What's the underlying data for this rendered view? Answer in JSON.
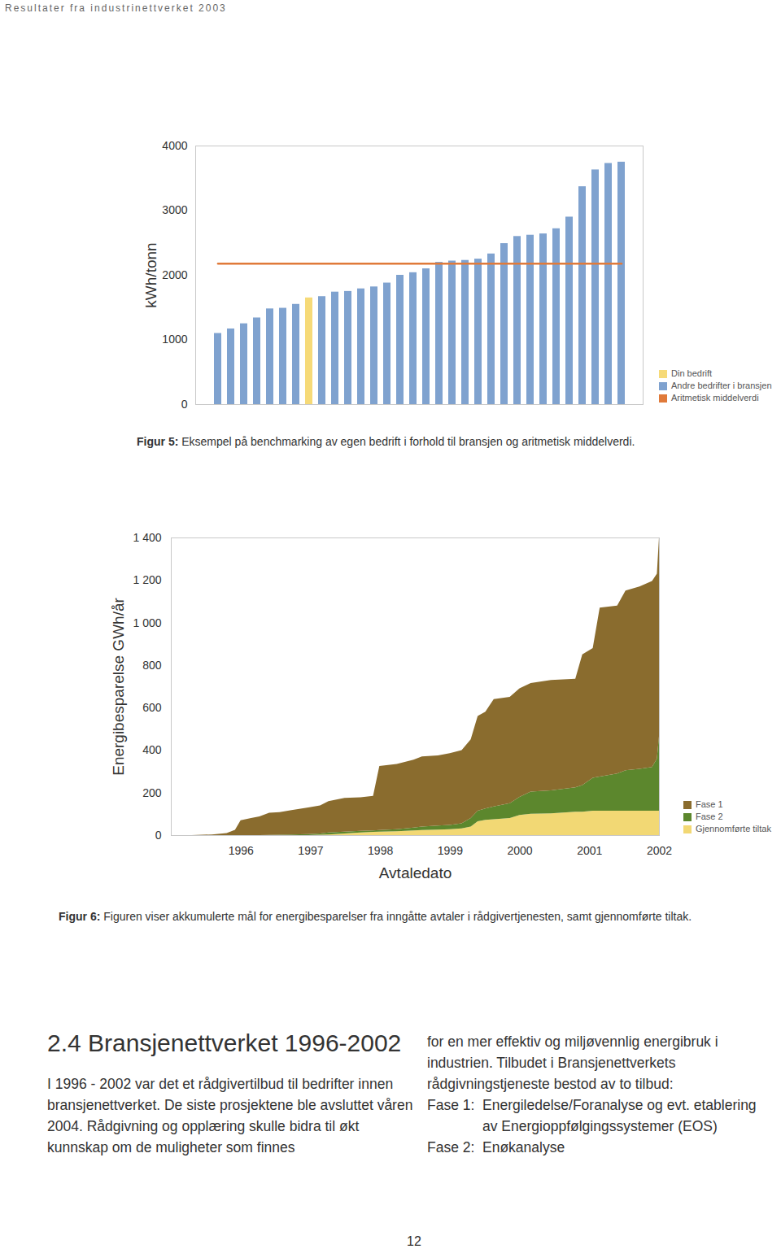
{
  "header": "Resultater fra industrinettverket 2003",
  "chart_data": [
    {
      "type": "bar",
      "ylabel": "kWh/tonn",
      "caption_label": "Figur 5:",
      "caption": "Eksempel på benchmarking av egen bedrift i forhold til bransjen og aritmetisk middelverdi.",
      "categories": [
        null,
        null,
        null,
        null,
        null,
        null,
        null,
        null,
        null,
        null,
        null,
        null,
        null,
        null,
        null,
        null,
        null,
        null,
        null,
        null,
        null,
        null,
        null,
        null,
        null,
        null,
        null,
        null,
        null,
        null,
        null,
        null
      ],
      "series": [
        {
          "name": "Din bedrift",
          "color": "#f6da78",
          "values": [
            null,
            null,
            null,
            null,
            null,
            null,
            null,
            1650,
            null,
            null,
            null,
            null,
            null,
            null,
            null,
            null,
            null,
            null,
            null,
            null,
            null,
            null,
            null,
            null,
            null,
            null,
            null,
            null,
            null,
            null,
            null,
            null
          ]
        },
        {
          "name": "Andre bedrifter i bransjen",
          "color": "#7fa2cf",
          "values": [
            1100,
            1170,
            1250,
            1340,
            1480,
            1490,
            1550,
            null,
            1670,
            1740,
            1750,
            1790,
            1820,
            1880,
            2000,
            2040,
            2100,
            2200,
            2220,
            2230,
            2250,
            2330,
            2490,
            2600,
            2620,
            2640,
            2720,
            2900,
            3370,
            3630,
            3730,
            3750
          ]
        },
        {
          "name": "Aritmetisk middelverdi",
          "color": "#e07a3a",
          "type": "line",
          "values": [
            2180,
            2180,
            2180,
            2180,
            2180,
            2180,
            2180,
            2180,
            2180,
            2180,
            2180,
            2180,
            2180,
            2180,
            2180,
            2180,
            2180,
            2180,
            2180,
            2180,
            2180,
            2180,
            2180,
            2180,
            2180,
            2180,
            2180,
            2180,
            2180,
            2180,
            2180,
            2180
          ]
        }
      ],
      "ylim": [
        0,
        4000
      ],
      "yticks": [
        0,
        1000,
        2000,
        3000,
        4000
      ],
      "tick_labels": "y",
      "legend": "lower right"
    },
    {
      "type": "area",
      "stacked": true,
      "xlabel": "Avtaledato",
      "ylabel": "Energibesparelse GWh/år",
      "caption_label": "Figur 6:",
      "caption": "Figuren viser akkumulerte mål for energibesparelser fra inngåtte avtaler i rådgivertjenesten, samt gjennomførte tiltak.",
      "x": [
        1995.3,
        1995.59,
        1995.8,
        1995.92,
        1996,
        1996.15,
        1996.27,
        1996.41,
        1996.56,
        1996.73,
        1996.97,
        1997.14,
        1997.26,
        1997.49,
        1997.72,
        1997.9,
        1997.99,
        1998.24,
        1998.48,
        1998.6,
        1998.83,
        1999,
        1999.17,
        1999.3,
        1999.4,
        1999.51,
        1999.63,
        1999.86,
        2000,
        2000.16,
        2000.45,
        2000.8,
        2000.9,
        2001.05,
        2001.15,
        2001.4,
        2001.52,
        2001.72,
        2001.9,
        2001.97,
        2002
      ],
      "series": [
        {
          "name": "Fase 1",
          "color": "#8a6c2e",
          "values": [
            0,
            3,
            10,
            25,
            70,
            80,
            88,
            104,
            106,
            115,
            125,
            132,
            148,
            159,
            158,
            163,
            301,
            307,
            320,
            330,
            330,
            337,
            345,
            370,
            445,
            455,
            505,
            500,
            510,
            510,
            520,
            510,
            615,
            610,
            795,
            790,
            845,
            858,
            875,
            870,
            935
          ]
        },
        {
          "name": "Fase 2",
          "color": "#5c872d",
          "values": [
            0,
            0,
            0,
            0,
            0,
            0,
            0,
            1,
            2,
            3,
            5,
            6,
            9,
            8,
            8,
            7,
            8,
            10,
            13,
            16,
            19,
            20,
            23,
            40,
            50,
            53,
            60,
            70,
            85,
            105,
            108,
            115,
            125,
            155,
            160,
            175,
            190,
            197,
            205,
            245,
            350
          ]
        },
        {
          "name": "Gjennomførte tiltak",
          "color": "#f2d874",
          "values": [
            0,
            0,
            0,
            0,
            0,
            0,
            0,
            0,
            0,
            0,
            0,
            2,
            3,
            8,
            12,
            15,
            16,
            18,
            22,
            24,
            26,
            28,
            32,
            40,
            65,
            72,
            75,
            80,
            95,
            100,
            102,
            110,
            110,
            115,
            115,
            115,
            115,
            115,
            115,
            115,
            115
          ]
        }
      ],
      "xlim": [
        1995,
        2002
      ],
      "xticks": [
        1996,
        1997,
        1998,
        1999,
        2000,
        2001,
        2002
      ],
      "ylim": [
        0,
        1400
      ],
      "yticks": [
        0,
        200,
        400,
        600,
        800,
        {
          "value": 1000,
          "label": "1 000"
        },
        {
          "value": 1200,
          "label": "1 200"
        },
        {
          "value": 1400,
          "label": "1 400"
        }
      ],
      "legend": "lower right"
    }
  ],
  "section": {
    "heading": "2.4 Bransjenettverket 1996-2002",
    "columns": [
      "I 1996 - 2002 var det et rådgivertilbud til bedrifter innen bransjenettverket. De siste prosjektene ble avsluttet våren 2004. Rådgivning og opplæring skulle bidra til økt kunnskap om de muligheter som finnes",
      "for en mer effektiv og miljøvennlig energibruk i industrien. Tilbudet i Bransjenettverkets rådgivningstjeneste bestod av to tilbud:"
    ],
    "list": [
      {
        "label": "Fase 1:",
        "text": "Energiledelse/Foranalyse og evt. etablering av Energioppfølgingssystemer (EOS)"
      },
      {
        "label": "Fase 2:",
        "text": "Enøkanalyse"
      }
    ]
  },
  "page_number": "12"
}
